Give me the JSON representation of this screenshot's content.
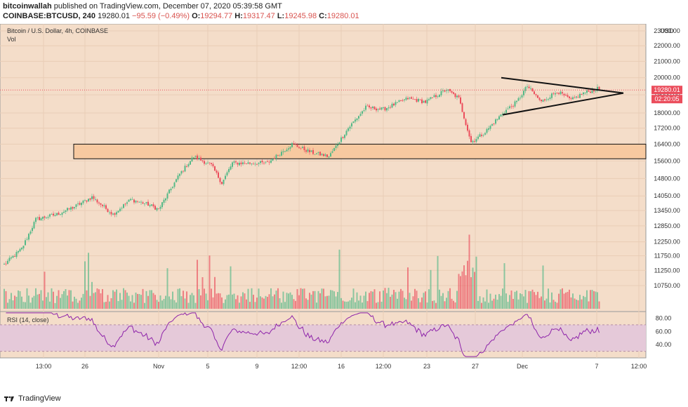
{
  "header": {
    "publisher": "bitcoinwallah",
    "published_line": "published on TradingView.com, December 07, 2020 05:39:58 GMT",
    "symbol": "COINBASE:BTCUSD, 240",
    "price": "19280.01",
    "change": "−95.59 (−0.49%)",
    "o_label": "O:",
    "o": "19294.77",
    "h_label": "H:",
    "h": "19317.47",
    "l_label": "L:",
    "l": "19245.98",
    "c_label": "C:",
    "c": "19280.01"
  },
  "legend": {
    "title": "Bitcoin / U.S. Dollar, 4h, COINBASE",
    "vol": "Vol",
    "rsi": "RSI (14, close)"
  },
  "currency": "USD",
  "last_price_tag": "19280.01",
  "countdown_tag": "02:20:05",
  "footer": {
    "brand": "TradingView"
  },
  "colors": {
    "up": "#53b987",
    "down": "#eb4d5c",
    "background": "#f4ddc9",
    "zone": "#f7c9a0",
    "rsi_line": "#8e24aa",
    "rsi_band": "#e5c9d9"
  },
  "chart_data": [
    {
      "type": "candlestick",
      "title": "Bitcoin / U.S. Dollar, 4h, COINBASE",
      "y_scale": "log",
      "y_ticks": [
        10750,
        11250,
        11750,
        12250,
        12850,
        13450,
        14050,
        14800,
        15600,
        16400,
        17200,
        18000,
        19000,
        20000,
        21000,
        22000,
        23000
      ],
      "x_ticks": [
        "13:00",
        "26",
        "Nov",
        "5",
        "9",
        "12:00",
        "16",
        "12:00",
        "23",
        "27",
        "Dec",
        "7",
        "12:00"
      ],
      "keyframes": [
        {
          "i": 0,
          "price": 11450
        },
        {
          "i": 10,
          "price": 12000
        },
        {
          "i": 18,
          "price": 13100
        },
        {
          "i": 30,
          "price": 13300
        },
        {
          "i": 40,
          "price": 13600
        },
        {
          "i": 50,
          "price": 14000
        },
        {
          "i": 62,
          "price": 13300
        },
        {
          "i": 72,
          "price": 13900
        },
        {
          "i": 82,
          "price": 13700
        },
        {
          "i": 88,
          "price": 13500
        },
        {
          "i": 100,
          "price": 15000
        },
        {
          "i": 108,
          "price": 15800
        },
        {
          "i": 118,
          "price": 15400
        },
        {
          "i": 124,
          "price": 14600
        },
        {
          "i": 130,
          "price": 15500
        },
        {
          "i": 150,
          "price": 15500
        },
        {
          "i": 164,
          "price": 16400
        },
        {
          "i": 175,
          "price": 16000
        },
        {
          "i": 185,
          "price": 15800
        },
        {
          "i": 196,
          "price": 17200
        },
        {
          "i": 206,
          "price": 18300
        },
        {
          "i": 216,
          "price": 18200
        },
        {
          "i": 230,
          "price": 18800
        },
        {
          "i": 240,
          "price": 18600
        },
        {
          "i": 252,
          "price": 19300
        },
        {
          "i": 259,
          "price": 18800
        },
        {
          "i": 266,
          "price": 16500
        },
        {
          "i": 274,
          "price": 17000
        },
        {
          "i": 284,
          "price": 18000
        },
        {
          "i": 292,
          "price": 18600
        },
        {
          "i": 298,
          "price": 19500
        },
        {
          "i": 306,
          "price": 18600
        },
        {
          "i": 315,
          "price": 19200
        },
        {
          "i": 323,
          "price": 18700
        },
        {
          "i": 330,
          "price": 19100
        },
        {
          "i": 336,
          "price": 19280
        }
      ],
      "support_zone": {
        "low": 15700,
        "high": 16400
      },
      "triangle": {
        "upper_from": 20000,
        "lower_from": 17900,
        "apex": 19100
      },
      "last_price": 19280.01
    },
    {
      "type": "line",
      "title": "RSI (14, close)",
      "y_ticks": [
        40,
        60,
        80
      ],
      "band": [
        30,
        70
      ],
      "ylim": [
        20,
        90
      ]
    }
  ]
}
